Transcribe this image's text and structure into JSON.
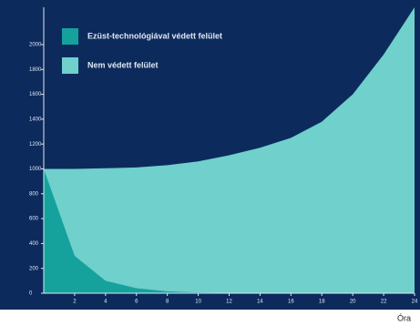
{
  "chart_data": {
    "type": "area",
    "x": [
      0,
      2,
      4,
      6,
      8,
      10,
      12,
      14,
      16,
      18,
      20,
      22,
      24
    ],
    "series": [
      {
        "name": "Nem védett felület",
        "color": "#6fd0cc",
        "values": [
          1000,
          1000,
          1005,
          1012,
          1030,
          1060,
          1110,
          1170,
          1250,
          1380,
          1600,
          1920,
          2300
        ]
      },
      {
        "name": "Ezüst-technológiával védett felület",
        "color": "#15a29c",
        "values": [
          1000,
          300,
          100,
          40,
          15,
          6,
          2,
          1,
          0,
          0,
          0,
          0,
          0
        ]
      }
    ],
    "xlim": [
      0,
      24
    ],
    "xticks": [
      2,
      4,
      6,
      8,
      10,
      12,
      14,
      16,
      18,
      20,
      22,
      24
    ],
    "ylim": [
      0,
      2300
    ],
    "yticks": [
      0,
      200,
      400,
      600,
      800,
      1000,
      1200,
      1400,
      1600,
      1800,
      2000
    ],
    "xlabel": "Óra",
    "background": "#0d2a5c"
  }
}
